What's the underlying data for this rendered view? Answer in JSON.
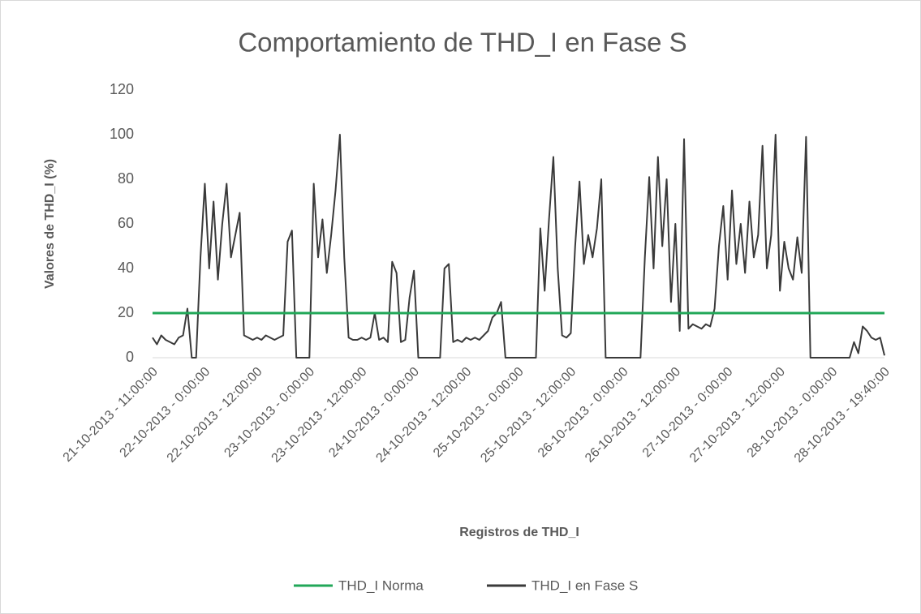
{
  "chart_data": {
    "type": "line",
    "title": "Comportamiento de THD_I en Fase S",
    "xlabel": "Registros de THD_I",
    "ylabel": "Valores de THD_I (%)",
    "ylim": [
      0,
      120
    ],
    "yticks": [
      0,
      20,
      40,
      60,
      80,
      100,
      120
    ],
    "grid": false,
    "legend": "bottom",
    "categories": [
      "21-10-2013 - 11:00:00",
      null,
      null,
      null,
      null,
      null,
      null,
      null,
      null,
      null,
      null,
      null,
      "22-10-2013 - 0:00:00",
      null,
      null,
      null,
      null,
      null,
      null,
      null,
      null,
      null,
      null,
      null,
      "22-10-2013 - 12:00:00",
      null,
      null,
      null,
      null,
      null,
      null,
      null,
      null,
      null,
      null,
      null,
      "23-10-2013 - 0:00:00",
      null,
      null,
      null,
      null,
      null,
      null,
      null,
      null,
      null,
      null,
      null,
      "23-10-2013 - 12:00:00",
      null,
      null,
      null,
      null,
      null,
      null,
      null,
      null,
      null,
      null,
      null,
      "24-10-2013 - 0:00:00",
      null,
      null,
      null,
      null,
      null,
      null,
      null,
      null,
      null,
      null,
      null,
      "24-10-2013 - 12:00:00",
      null,
      null,
      null,
      null,
      null,
      null,
      null,
      null,
      null,
      null,
      null,
      "25-10-2013 - 0:00:00",
      null,
      null,
      null,
      null,
      null,
      null,
      null,
      null,
      null,
      null,
      null,
      "25-10-2013 - 12:00:00",
      null,
      null,
      null,
      null,
      null,
      null,
      null,
      null,
      null,
      null,
      null,
      "26-10-2013 - 0:00:00",
      null,
      null,
      null,
      null,
      null,
      null,
      null,
      null,
      null,
      null,
      null,
      "26-10-2013 - 12:00:00",
      null,
      null,
      null,
      null,
      null,
      null,
      null,
      null,
      null,
      null,
      null,
      "27-10-2013 - 0:00:00",
      null,
      null,
      null,
      null,
      null,
      null,
      null,
      null,
      null,
      null,
      null,
      "27-10-2013 - 12:00:00",
      null,
      null,
      null,
      null,
      null,
      null,
      null,
      null,
      null,
      null,
      null,
      "28-10-2013 - 0:00:00",
      null,
      null,
      null,
      null,
      null,
      null,
      null,
      null,
      null,
      null,
      null,
      "28-10-2013 - 19:40:00"
    ],
    "series": [
      {
        "name": "THD_I Norma",
        "color": "#21a758",
        "values": [
          20,
          20,
          20,
          20,
          20,
          20,
          20,
          20,
          20,
          20,
          20,
          20,
          20,
          20,
          20,
          20,
          20,
          20,
          20,
          20,
          20,
          20,
          20,
          20,
          20,
          20,
          20,
          20,
          20,
          20,
          20,
          20,
          20,
          20,
          20,
          20,
          20,
          20,
          20,
          20,
          20,
          20,
          20,
          20,
          20,
          20,
          20,
          20,
          20,
          20,
          20,
          20,
          20,
          20,
          20,
          20,
          20,
          20,
          20,
          20,
          20,
          20,
          20,
          20,
          20,
          20,
          20,
          20,
          20,
          20,
          20,
          20,
          20,
          20,
          20,
          20,
          20,
          20,
          20,
          20,
          20,
          20,
          20,
          20,
          20,
          20,
          20,
          20,
          20,
          20,
          20,
          20,
          20,
          20,
          20,
          20,
          20,
          20,
          20,
          20,
          20,
          20,
          20,
          20,
          20,
          20,
          20,
          20,
          20,
          20,
          20,
          20,
          20,
          20,
          20,
          20,
          20,
          20,
          20,
          20,
          20,
          20,
          20,
          20,
          20,
          20,
          20,
          20,
          20,
          20,
          20,
          20,
          20,
          20,
          20,
          20,
          20,
          20,
          20,
          20,
          20,
          20,
          20,
          20,
          20,
          20,
          20,
          20,
          20,
          20,
          20,
          20,
          20,
          20,
          20,
          20,
          20,
          20,
          20,
          20,
          20,
          20,
          20,
          20,
          20,
          20,
          20,
          20,
          20
        ]
      },
      {
        "name": "THD_I en Fase S",
        "color": "#3a3a3a",
        "values": [
          9,
          6,
          10,
          8,
          7,
          6,
          9,
          10,
          22,
          0,
          0,
          45,
          78,
          40,
          70,
          35,
          60,
          78,
          45,
          55,
          65,
          10,
          9,
          8,
          9,
          8,
          10,
          9,
          8,
          9,
          10,
          52,
          57,
          0,
          0,
          0,
          0,
          78,
          45,
          62,
          38,
          55,
          75,
          100,
          45,
          9,
          8,
          8,
          9,
          8,
          9,
          20,
          8,
          9,
          7,
          43,
          38,
          7,
          8,
          27,
          39,
          0,
          0,
          0,
          0,
          0,
          0,
          40,
          42,
          7,
          8,
          7,
          9,
          8,
          9,
          8,
          10,
          12,
          18,
          20,
          25,
          0,
          0,
          0,
          0,
          0,
          0,
          0,
          0,
          58,
          30,
          62,
          90,
          40,
          10,
          9,
          11,
          50,
          79,
          42,
          55,
          45,
          58,
          80,
          0,
          0,
          0,
          0,
          0,
          0,
          0,
          0,
          0,
          45,
          81,
          40,
          90,
          50,
          80,
          25,
          60,
          12,
          98,
          13,
          15,
          14,
          13,
          15,
          14,
          22,
          50,
          68,
          35,
          75,
          42,
          60,
          38,
          70,
          45,
          55,
          95,
          40,
          55,
          100,
          30,
          52,
          40,
          35,
          54,
          38,
          99,
          0,
          0,
          0,
          0,
          0,
          0,
          0,
          0,
          0,
          0,
          7,
          2,
          14,
          12,
          9,
          8,
          9,
          1
        ]
      }
    ]
  }
}
